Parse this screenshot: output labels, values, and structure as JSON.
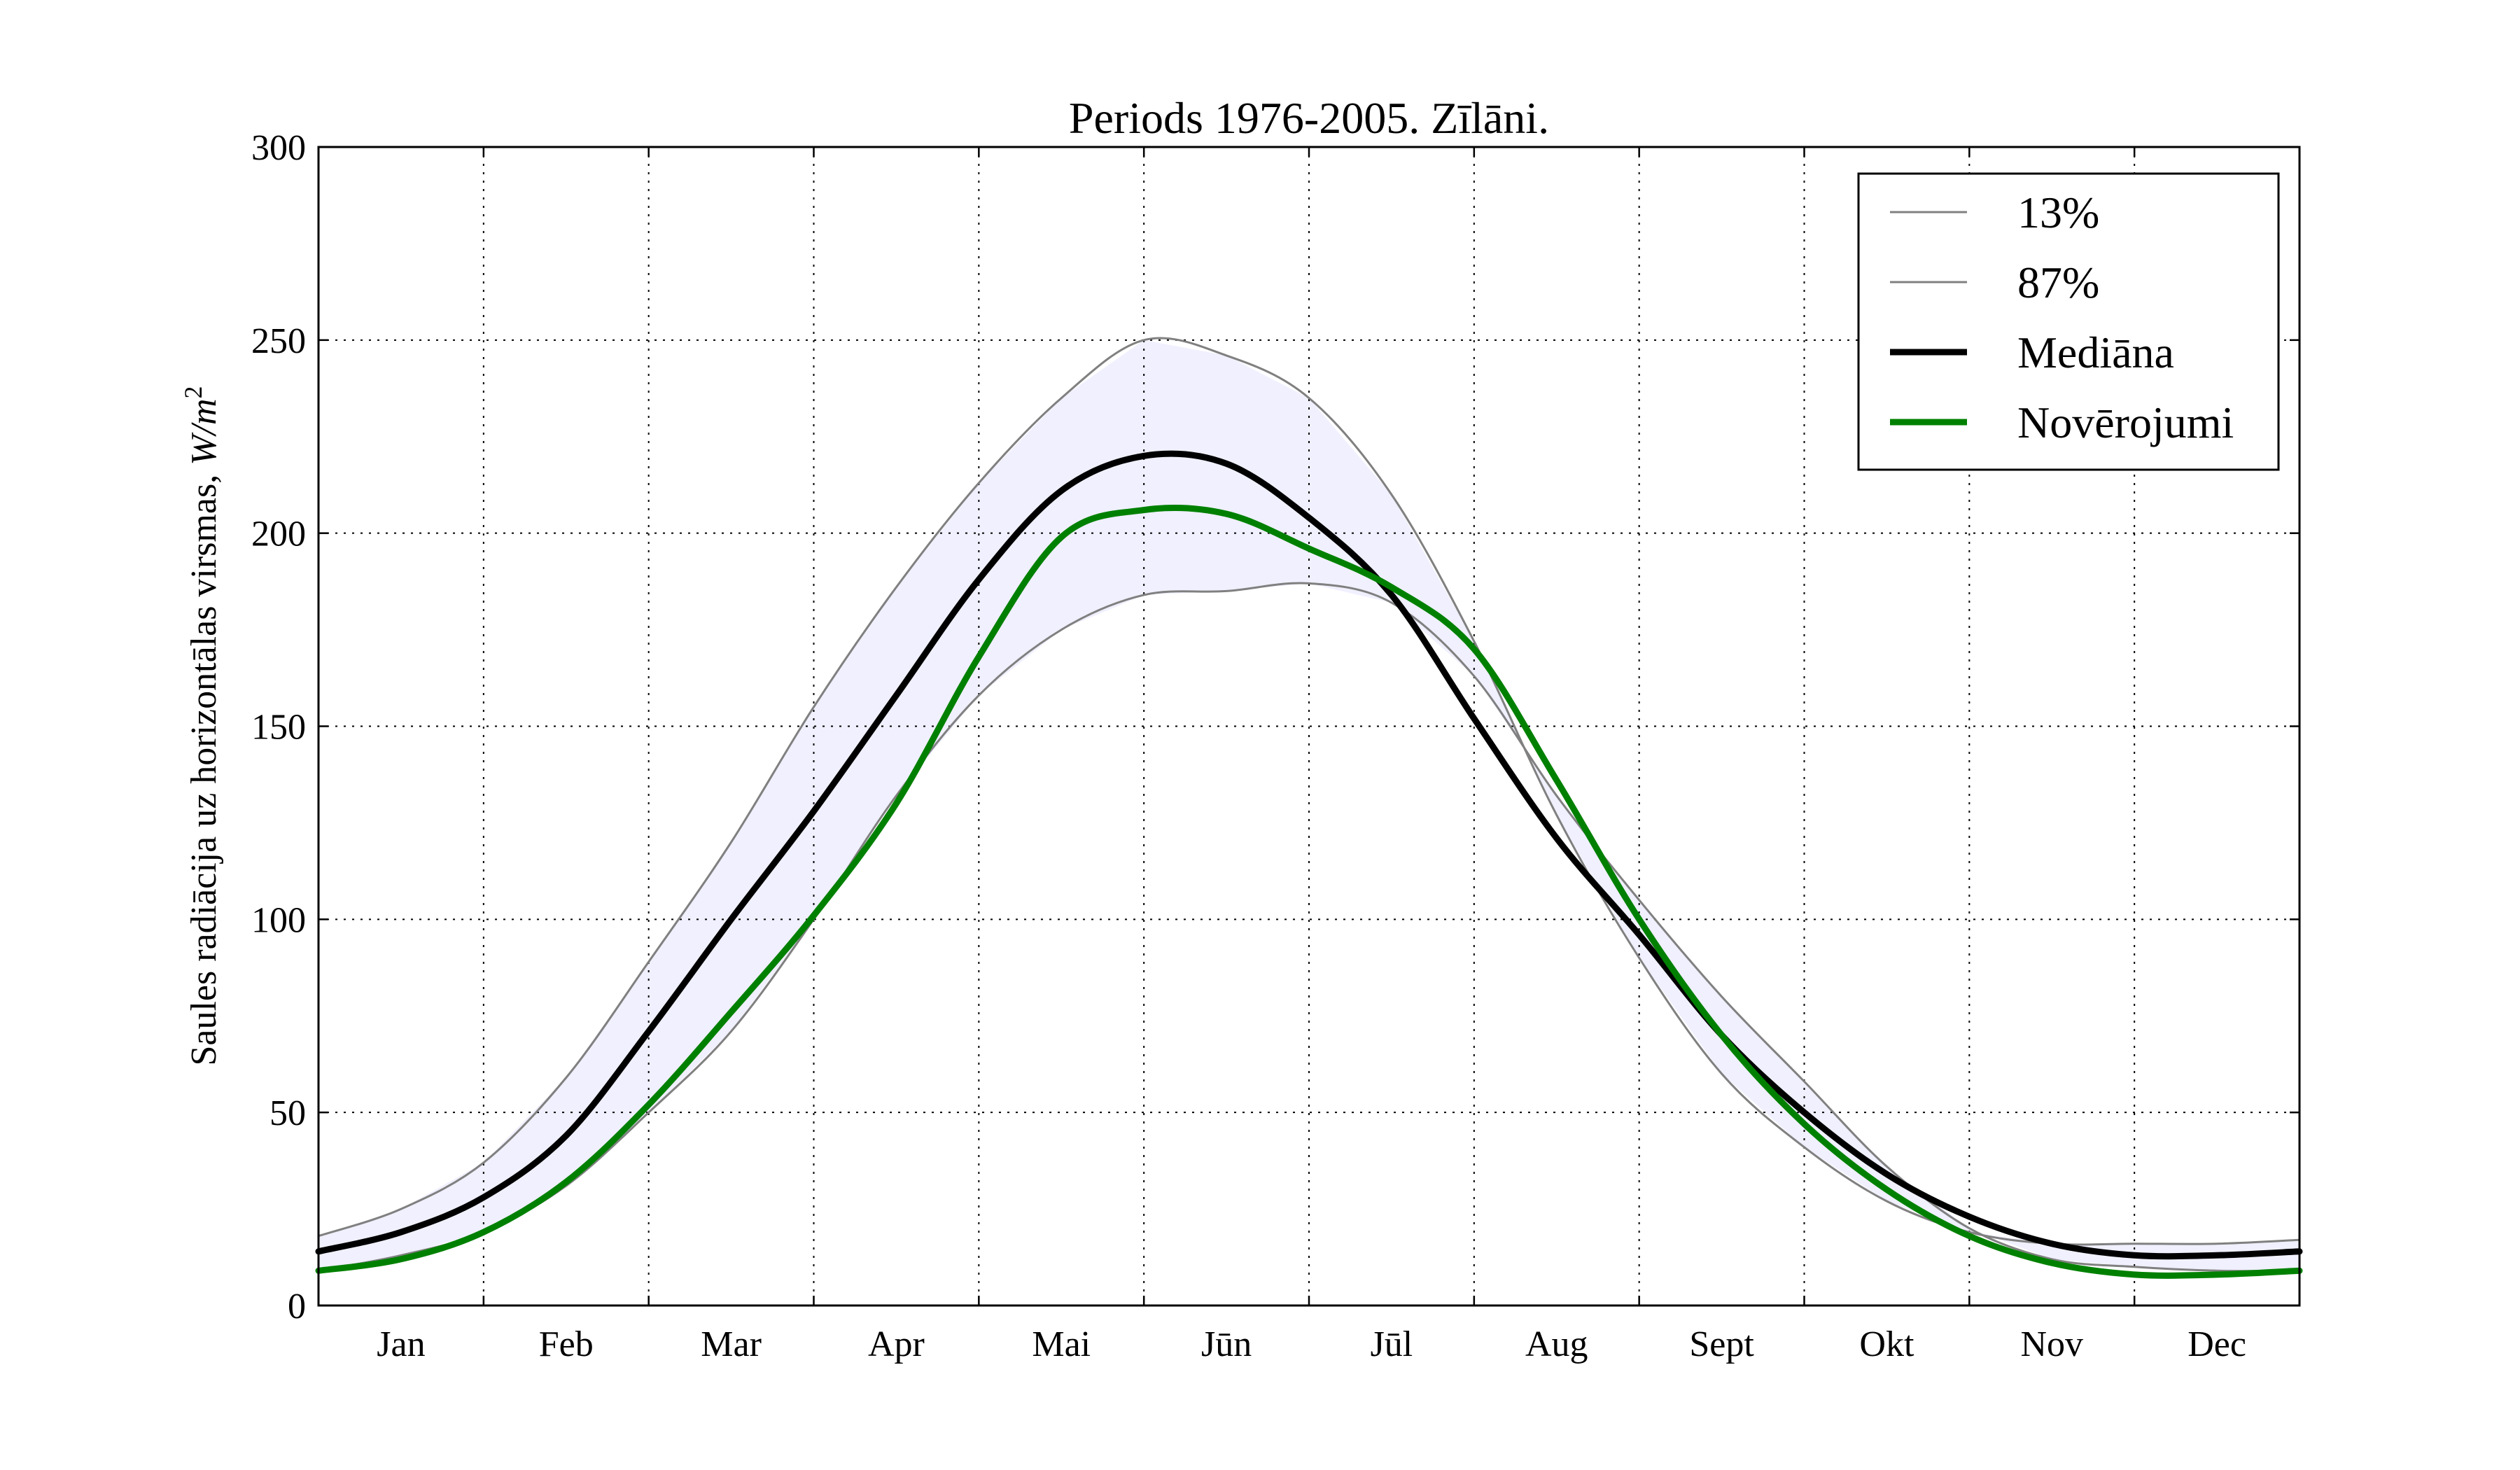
{
  "chart_data": {
    "type": "line",
    "title": "Periods 1976-2005. Zīlāni.",
    "ylabel": "Saules radiācija uz horizontālas virsmas, ",
    "ylabel_unit": "W/m",
    "ylabel_unit_exp": "2",
    "xlabel": "",
    "categories": [
      "Jan",
      "Feb",
      "Mar",
      "Apr",
      "Mai",
      "Jūn",
      "Jūl",
      "Aug",
      "Sept",
      "Okt",
      "Nov",
      "Dec"
    ],
    "ylim": [
      0,
      300
    ],
    "yticks": [
      0,
      50,
      100,
      150,
      200,
      250,
      300
    ],
    "grid": true,
    "legend_position": "top-right",
    "x": [
      0.0,
      0.5,
      1.0,
      1.5,
      2.0,
      2.5,
      3.0,
      3.5,
      4.0,
      4.5,
      5.0,
      5.5,
      6.0,
      6.5,
      7.0,
      7.5,
      8.0,
      8.5,
      9.0,
      9.5,
      10.0,
      10.5,
      11.0,
      11.5,
      12.0
    ],
    "series": [
      {
        "name": "13%",
        "color": "#808080",
        "values": [
          9,
          13,
          19,
          31,
          50,
          71,
          100,
          132,
          158,
          175,
          184,
          185,
          187,
          182,
          163,
          132,
          105,
          80,
          58,
          36,
          20,
          12,
          10,
          9,
          9
        ]
      },
      {
        "name": "87%",
        "color": "#808080",
        "values": [
          18,
          25,
          37,
          59,
          89,
          120,
          155,
          186,
          213,
          235,
          250,
          246,
          235,
          210,
          172,
          127,
          90,
          60,
          41,
          27,
          19,
          16,
          16,
          16,
          17
        ]
      },
      {
        "name": "Mediāna",
        "color": "#000000",
        "values": [
          14,
          19,
          28,
          44,
          71,
          100,
          128,
          158,
          188,
          211,
          220,
          218,
          204,
          184,
          152,
          121,
          96,
          70,
          50,
          34,
          23,
          16,
          13,
          13,
          14
        ]
      },
      {
        "name": "Novērojumi",
        "color": "#008000",
        "values": [
          9,
          12,
          19,
          32,
          52,
          76,
          101,
          130,
          168,
          199,
          206,
          205,
          196,
          186,
          170,
          136,
          100,
          70,
          47,
          30,
          18,
          11,
          8,
          8,
          9
        ]
      }
    ],
    "band_color": "#f0f0ff"
  }
}
